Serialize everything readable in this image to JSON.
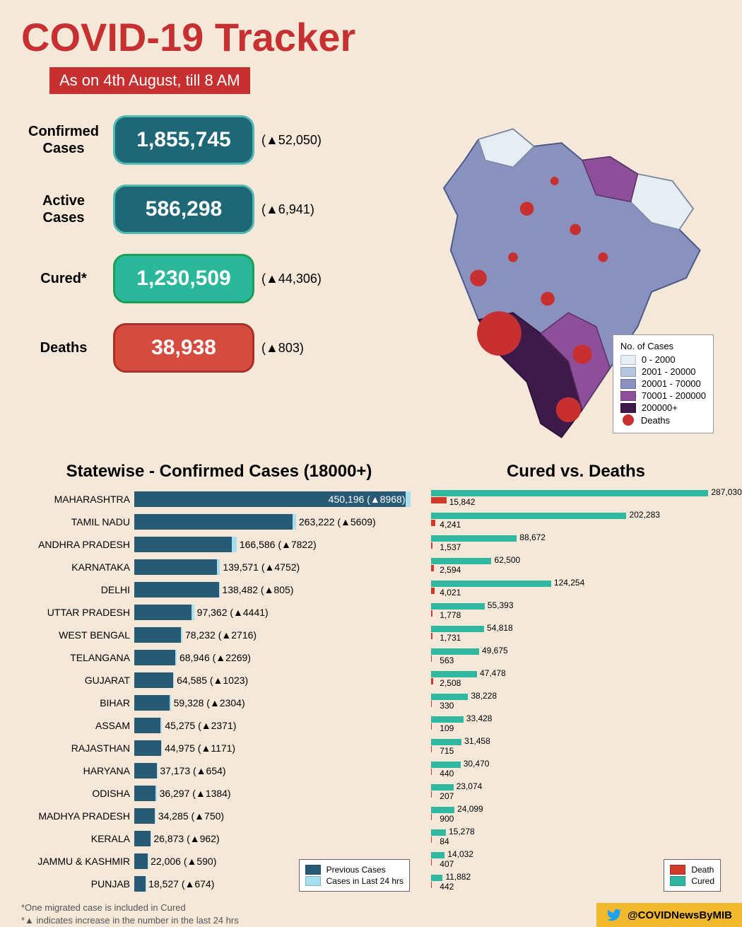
{
  "header": {
    "title": "COVID-19 Tracker",
    "subtitle": "As on 4th August, till 8 AM"
  },
  "colors": {
    "background": "#f5e8d8",
    "title": "#c73030",
    "pill_teal": "#1d6777",
    "pill_teal_border": "#4fb8b0",
    "pill_green": "#2bb79a",
    "pill_green_border": "#1f9e55",
    "pill_red": "#d64b3f",
    "pill_red_border": "#a83028",
    "bar_prev": "#285a75",
    "bar_new": "#a5dff0",
    "cured": "#2fb7a0",
    "death": "#d03a2a",
    "footer_bg": "#f2b92e",
    "twitter": "#1da1f2"
  },
  "stats": [
    {
      "label": "Confirmed Cases",
      "value": "1,855,745",
      "change": "(▲52,050)",
      "bg": "#1d6777",
      "border": "#4fb8b0"
    },
    {
      "label": "Active Cases",
      "value": "586,298",
      "change": "(▲6,941)",
      "bg": "#1d6777",
      "border": "#4fb8b0"
    },
    {
      "label": "Cured*",
      "value": "1,230,509",
      "change": "(▲44,306)",
      "bg": "#2bb79a",
      "border": "#1f9e55"
    },
    {
      "label": "Deaths",
      "value": "38,938",
      "change": "(▲803)",
      "bg": "#d64b3f",
      "border": "#a83028"
    }
  ],
  "map_legend": {
    "title": "No. of Cases",
    "bins": [
      {
        "label": "0 - 2000",
        "color": "#e6eef4"
      },
      {
        "label": "2001 - 20000",
        "color": "#b5c7de"
      },
      {
        "label": "20001 - 70000",
        "color": "#8a91bf"
      },
      {
        "label": "70001 - 200000",
        "color": "#8d4f99"
      },
      {
        "label": "200000+",
        "color": "#3d1a4a"
      }
    ],
    "deaths_label": "Deaths",
    "deaths_color": "#c73030"
  },
  "statewise": {
    "title": "Statewise - Confirmed Cases (18000+)",
    "max_value": 460000,
    "legend_prev": "Previous Cases",
    "legend_new": "Cases in Last 24 hrs",
    "rows": [
      {
        "state": "MAHARASHTRA",
        "total": 450196,
        "increase": 8968,
        "label": "450,196 (▲8968)",
        "label_inside": true
      },
      {
        "state": "TAMIL NADU",
        "total": 263222,
        "increase": 5609,
        "label": "263,222 (▲5609)",
        "label_inside": false
      },
      {
        "state": "ANDHRA PRADESH",
        "total": 166586,
        "increase": 7822,
        "label": "166,586 (▲7822)",
        "label_inside": false
      },
      {
        "state": "KARNATAKA",
        "total": 139571,
        "increase": 4752,
        "label": "139,571 (▲4752)",
        "label_inside": false
      },
      {
        "state": "DELHI",
        "total": 138482,
        "increase": 805,
        "label": "138,482 (▲805)",
        "label_inside": false
      },
      {
        "state": "UTTAR PRADESH",
        "total": 97362,
        "increase": 4441,
        "label": "97,362 (▲4441)",
        "label_inside": false
      },
      {
        "state": "WEST BENGAL",
        "total": 78232,
        "increase": 2716,
        "label": "78,232 (▲2716)",
        "label_inside": false
      },
      {
        "state": "TELANGANA",
        "total": 68946,
        "increase": 2269,
        "label": "68,946 (▲2269)",
        "label_inside": false
      },
      {
        "state": "GUJARAT",
        "total": 64585,
        "increase": 1023,
        "label": "64,585 (▲1023)",
        "label_inside": false
      },
      {
        "state": "BIHAR",
        "total": 59328,
        "increase": 2304,
        "label": "59,328 (▲2304)",
        "label_inside": false
      },
      {
        "state": "ASSAM",
        "total": 45275,
        "increase": 2371,
        "label": "45,275 (▲2371)",
        "label_inside": false
      },
      {
        "state": "RAJASTHAN",
        "total": 44975,
        "increase": 1171,
        "label": "44,975 (▲1171)",
        "label_inside": false
      },
      {
        "state": "HARYANA",
        "total": 37173,
        "increase": 654,
        "label": "37,173 (▲654)",
        "label_inside": false
      },
      {
        "state": "ODISHA",
        "total": 36297,
        "increase": 1384,
        "label": "36,297 (▲1384)",
        "label_inside": false
      },
      {
        "state": "MADHYA PRADESH",
        "total": 34285,
        "increase": 750,
        "label": "34,285 (▲750)",
        "label_inside": false
      },
      {
        "state": "KERALA",
        "total": 26873,
        "increase": 962,
        "label": "26,873 (▲962)",
        "label_inside": false
      },
      {
        "state": "JAMMU & KASHMIR",
        "total": 22006,
        "increase": 590,
        "label": "22,006 (▲590)",
        "label_inside": false
      },
      {
        "state": "PUNJAB",
        "total": 18527,
        "increase": 674,
        "label": "18,527 (▲674)",
        "label_inside": false
      }
    ]
  },
  "cured_vs_deaths": {
    "title": "Cured vs. Deaths",
    "max_value": 300000,
    "legend_death": "Death",
    "legend_cured": "Cured",
    "rows": [
      {
        "cured": 287030,
        "deaths": 15842,
        "cured_label": "287,030",
        "deaths_label": "15,842"
      },
      {
        "cured": 202283,
        "deaths": 4241,
        "cured_label": "202,283",
        "deaths_label": "4,241"
      },
      {
        "cured": 88672,
        "deaths": 1537,
        "cured_label": "88,672",
        "deaths_label": "1,537"
      },
      {
        "cured": 62500,
        "deaths": 2594,
        "cured_label": "62,500",
        "deaths_label": "2,594"
      },
      {
        "cured": 124254,
        "deaths": 4021,
        "cured_label": "124,254",
        "deaths_label": "4,021"
      },
      {
        "cured": 55393,
        "deaths": 1778,
        "cured_label": "55,393",
        "deaths_label": "1,778"
      },
      {
        "cured": 54818,
        "deaths": 1731,
        "cured_label": "54,818",
        "deaths_label": "1,731"
      },
      {
        "cured": 49675,
        "deaths": 563,
        "cured_label": "49,675",
        "deaths_label": "563"
      },
      {
        "cured": 47478,
        "deaths": 2508,
        "cured_label": "47,478",
        "deaths_label": "2,508"
      },
      {
        "cured": 38228,
        "deaths": 330,
        "cured_label": "38,228",
        "deaths_label": "330"
      },
      {
        "cured": 33428,
        "deaths": 109,
        "cured_label": "33,428",
        "deaths_label": "109"
      },
      {
        "cured": 31458,
        "deaths": 715,
        "cured_label": "31,458",
        "deaths_label": "715"
      },
      {
        "cured": 30470,
        "deaths": 440,
        "cured_label": "30,470",
        "deaths_label": "440"
      },
      {
        "cured": 23074,
        "deaths": 207,
        "cured_label": "23,074",
        "deaths_label": "207"
      },
      {
        "cured": 24099,
        "deaths": 900,
        "cured_label": "24,099",
        "deaths_label": "900"
      },
      {
        "cured": 15278,
        "deaths": 84,
        "cured_label": "15,278",
        "deaths_label": "84"
      },
      {
        "cured": 14032,
        "deaths": 407,
        "cured_label": "14,032",
        "deaths_label": "407"
      },
      {
        "cured": 11882,
        "deaths": 442,
        "cured_label": "11,882",
        "deaths_label": "442"
      }
    ]
  },
  "footnotes": {
    "line1": "*One migrated case is included in Cured",
    "line2": "*▲ indicates increase in the number in the last 24 hrs"
  },
  "footer": {
    "handle": "@COVIDNewsByMIB"
  }
}
